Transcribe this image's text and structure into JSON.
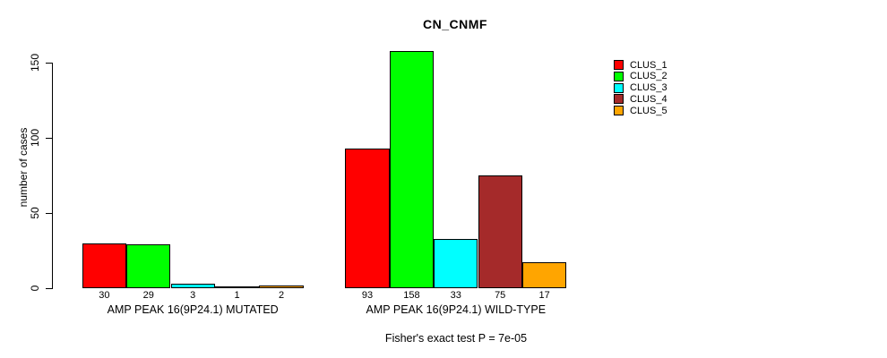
{
  "title": "CN_CNMF",
  "footer": "Fisher's exact test P = 7e-05",
  "y_axis": {
    "label": "number of cases"
  },
  "legend": {
    "items": [
      {
        "label": "CLUS_1",
        "color": "#FF0000"
      },
      {
        "label": "CLUS_2",
        "color": "#00FF00"
      },
      {
        "label": "CLUS_3",
        "color": "#00FFFF"
      },
      {
        "label": "CLUS_4",
        "color": "#A52A2A"
      },
      {
        "label": "CLUS_5",
        "color": "#FFA500"
      }
    ]
  },
  "chart_data": {
    "type": "bar",
    "title": "CN_CNMF",
    "categories": [
      "AMP PEAK 16(9P24.1) MUTATED",
      "AMP PEAK 16(9P24.1) WILD-TYPE"
    ],
    "series": [
      {
        "name": "CLUS_1",
        "color": "#FF0000",
        "values": [
          30,
          93
        ]
      },
      {
        "name": "CLUS_2",
        "color": "#00FF00",
        "values": [
          29,
          158
        ]
      },
      {
        "name": "CLUS_3",
        "color": "#00FFFF",
        "values": [
          3,
          33
        ]
      },
      {
        "name": "CLUS_4",
        "color": "#A52A2A",
        "values": [
          1,
          75
        ]
      },
      {
        "name": "CLUS_5",
        "color": "#FFA500",
        "values": [
          2,
          17
        ]
      }
    ],
    "bar_value_labels": [
      [
        30,
        29,
        3,
        1,
        2
      ],
      [
        93,
        158,
        33,
        75,
        17
      ]
    ],
    "xlabel": "",
    "ylabel": "number of cases",
    "ylim": [
      0,
      158
    ],
    "yticks": [
      0,
      50,
      100,
      150
    ],
    "grid": false,
    "legend_position": "top-right-outside",
    "annotation": "Fisher's exact test P = 7e-05"
  }
}
